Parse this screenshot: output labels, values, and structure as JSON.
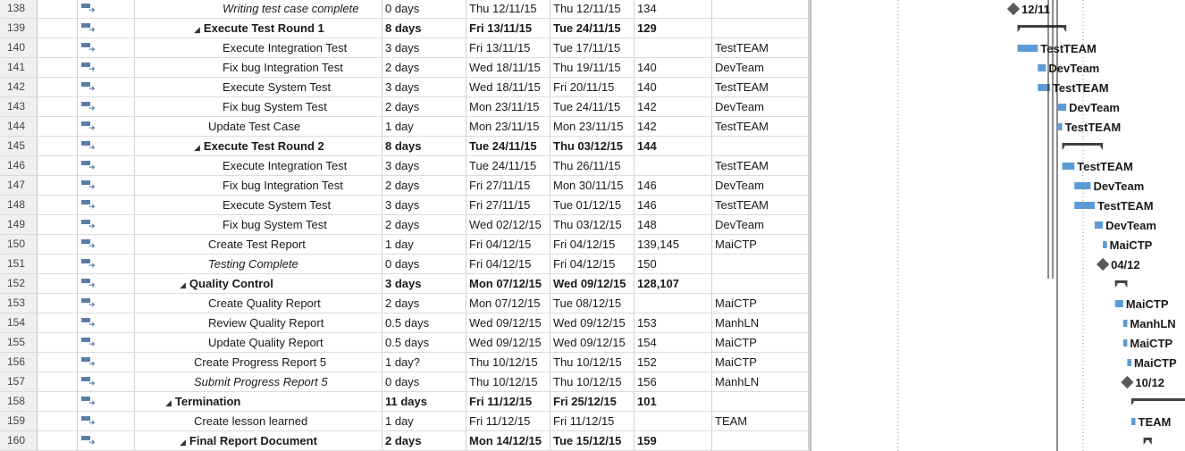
{
  "rows": [
    {
      "id": "138",
      "name": "Writing test case complete",
      "duration": "0 days",
      "start": "Thu 12/11/15",
      "finish": "Thu 12/11/15",
      "pred": "134",
      "res": "",
      "level": 3,
      "summary": false,
      "milestone": true
    },
    {
      "id": "139",
      "name": "Execute Test Round 1",
      "duration": "8 days",
      "start": "Fri 13/11/15",
      "finish": "Tue 24/11/15",
      "pred": "129",
      "res": "",
      "level": 2,
      "summary": true,
      "milestone": false
    },
    {
      "id": "140",
      "name": "Execute Integration Test",
      "duration": "3 days",
      "start": "Fri 13/11/15",
      "finish": "Tue 17/11/15",
      "pred": "",
      "res": "TestTEAM",
      "level": 3,
      "summary": false,
      "milestone": false
    },
    {
      "id": "141",
      "name": "Fix bug Integration Test",
      "duration": "2 days",
      "start": "Wed 18/11/15",
      "finish": "Thu 19/11/15",
      "pred": "140",
      "res": "DevTeam",
      "level": 3,
      "summary": false,
      "milestone": false
    },
    {
      "id": "142",
      "name": "Execute System Test",
      "duration": "3 days",
      "start": "Wed 18/11/15",
      "finish": "Fri 20/11/15",
      "pred": "140",
      "res": "TestTEAM",
      "level": 3,
      "summary": false,
      "milestone": false
    },
    {
      "id": "143",
      "name": "Fix bug System Test",
      "duration": "2 days",
      "start": "Mon 23/11/15",
      "finish": "Tue 24/11/15",
      "pred": "142",
      "res": "DevTeam",
      "level": 3,
      "summary": false,
      "milestone": false
    },
    {
      "id": "144",
      "name": "Update Test Case",
      "duration": "1 day",
      "start": "Mon 23/11/15",
      "finish": "Mon 23/11/15",
      "pred": "142",
      "res": "TestTEAM",
      "level": 2,
      "summary": false,
      "milestone": false
    },
    {
      "id": "145",
      "name": "Execute Test Round 2",
      "duration": "8 days",
      "start": "Tue 24/11/15",
      "finish": "Thu 03/12/15",
      "pred": "144",
      "res": "",
      "level": 2,
      "summary": true,
      "milestone": false
    },
    {
      "id": "146",
      "name": "Execute Integration Test",
      "duration": "3 days",
      "start": "Tue 24/11/15",
      "finish": "Thu 26/11/15",
      "pred": "",
      "res": "TestTEAM",
      "level": 3,
      "summary": false,
      "milestone": false
    },
    {
      "id": "147",
      "name": "Fix bug Integration Test",
      "duration": "2 days",
      "start": "Fri 27/11/15",
      "finish": "Mon 30/11/15",
      "pred": "146",
      "res": "DevTeam",
      "level": 3,
      "summary": false,
      "milestone": false
    },
    {
      "id": "148",
      "name": "Execute System Test",
      "duration": "3 days",
      "start": "Fri 27/11/15",
      "finish": "Tue 01/12/15",
      "pred": "146",
      "res": "TestTEAM",
      "level": 3,
      "summary": false,
      "milestone": false
    },
    {
      "id": "149",
      "name": "Fix bug System Test",
      "duration": "2 days",
      "start": "Wed 02/12/15",
      "finish": "Thu 03/12/15",
      "pred": "148",
      "res": "DevTeam",
      "level": 3,
      "summary": false,
      "milestone": false
    },
    {
      "id": "150",
      "name": "Create Test Report",
      "duration": "1 day",
      "start": "Fri 04/12/15",
      "finish": "Fri 04/12/15",
      "pred": "139,145",
      "res": "MaiCTP",
      "level": 2,
      "summary": false,
      "milestone": false
    },
    {
      "id": "151",
      "name": "Testing Complete",
      "duration": "0 days",
      "start": "Fri 04/12/15",
      "finish": "Fri 04/12/15",
      "pred": "150",
      "res": "",
      "level": 2,
      "summary": false,
      "milestone": true
    },
    {
      "id": "152",
      "name": "Quality Control",
      "duration": "3 days",
      "start": "Mon 07/12/15",
      "finish": "Wed 09/12/15",
      "pred": "128,107",
      "res": "",
      "level": 1,
      "summary": true,
      "milestone": false
    },
    {
      "id": "153",
      "name": "Create Quality Report",
      "duration": "2 days",
      "start": "Mon 07/12/15",
      "finish": "Tue 08/12/15",
      "pred": "",
      "res": "MaiCTP",
      "level": 2,
      "summary": false,
      "milestone": false
    },
    {
      "id": "154",
      "name": "Review Quality Report",
      "duration": "0.5 days",
      "start": "Wed 09/12/15",
      "finish": "Wed 09/12/15",
      "pred": "153",
      "res": "ManhLN",
      "level": 2,
      "summary": false,
      "milestone": false
    },
    {
      "id": "155",
      "name": "Update Quality Report",
      "duration": "0.5 days",
      "start": "Wed 09/12/15",
      "finish": "Wed 09/12/15",
      "pred": "154",
      "res": "MaiCTP",
      "level": 2,
      "summary": false,
      "milestone": false
    },
    {
      "id": "156",
      "name": "Create Progress Report 5",
      "duration": "1 day?",
      "start": "Thu 10/12/15",
      "finish": "Thu 10/12/15",
      "pred": "152",
      "res": "MaiCTP",
      "level": 1,
      "summary": false,
      "milestone": false
    },
    {
      "id": "157",
      "name": "Submit Progress Report 5",
      "duration": "0 days",
      "start": "Thu 10/12/15",
      "finish": "Thu 10/12/15",
      "pred": "156",
      "res": "ManhLN",
      "level": 1,
      "summary": false,
      "milestone": true
    },
    {
      "id": "158",
      "name": "Termination",
      "duration": "11 days",
      "start": "Fri 11/12/15",
      "finish": "Fri 25/12/15",
      "pred": "101",
      "res": "",
      "level": 0,
      "summary": true,
      "milestone": false
    },
    {
      "id": "159",
      "name": "Create lesson learned",
      "duration": "1 day",
      "start": "Fri 11/12/15",
      "finish": "Fri 11/12/15",
      "pred": "",
      "res": "TEAM",
      "level": 1,
      "summary": false,
      "milestone": false
    },
    {
      "id": "160",
      "name": "Final Report Document",
      "duration": "2 days",
      "start": "Mon 14/12/15",
      "finish": "Tue 15/12/15",
      "pred": "159",
      "res": "",
      "level": 1,
      "summary": true,
      "milestone": false
    }
  ],
  "gantt": {
    "bar_color": "#5b9bd5",
    "summary_color": "#404040",
    "milestone_color": "#595959",
    "labels": {
      "138": "12/11",
      "140": "TestTEAM",
      "141": "DevTeam",
      "142": "TestTEAM",
      "143": "DevTeam",
      "144": "TestTEAM",
      "146": "TestTEAM",
      "147": "DevTeam",
      "148": "TestTEAM",
      "149": "DevTeam",
      "150": "MaiCTP",
      "151": "04/12",
      "153": "MaiCTP",
      "154": "ManhLN",
      "155": "MaiCTP",
      "156": "MaiCTP",
      "157": "10/12",
      "159": "TEAM"
    }
  }
}
